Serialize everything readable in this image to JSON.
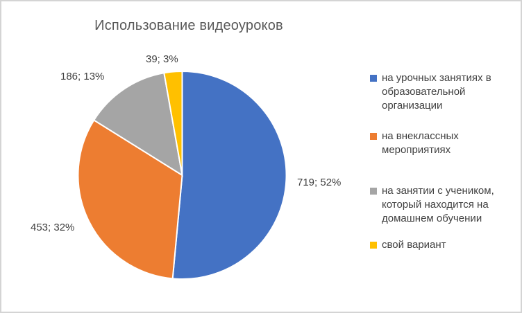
{
  "chart": {
    "title": "Использование видеоуроков"
  },
  "chart_data": {
    "type": "pie",
    "title": "Использование видеоуроков",
    "categories": [
      "на урочных занятиях в образовательной организации",
      "на внеклассных мероприятиях",
      "на занятии с учеником, который находится на домашнем обучении",
      "свой вариант"
    ],
    "values": [
      719,
      453,
      186,
      39
    ],
    "percents": [
      52,
      32,
      13,
      3
    ],
    "data_labels": [
      "719; 52%",
      "453; 32%",
      "186; 13%",
      "39; 3%"
    ],
    "colors": [
      "#4472C4",
      "#ED7D31",
      "#A5A5A5",
      "#FFC000"
    ],
    "label_format": "value; percent",
    "legend_position": "right",
    "start_angle_deg": 0,
    "direction": "clockwise",
    "slice_border_color": "#FFFFFF"
  },
  "legend": {
    "items": [
      {
        "lines": [
          "на урочных занятиях в",
          "образовательной",
          "организации"
        ]
      },
      {
        "lines": [
          "на внеклассных",
          "мероприятиях"
        ]
      },
      {
        "lines": [
          "на занятии с учеником,",
          "который находится на",
          "домашнем обучении"
        ]
      },
      {
        "lines": [
          "свой вариант"
        ]
      }
    ]
  }
}
